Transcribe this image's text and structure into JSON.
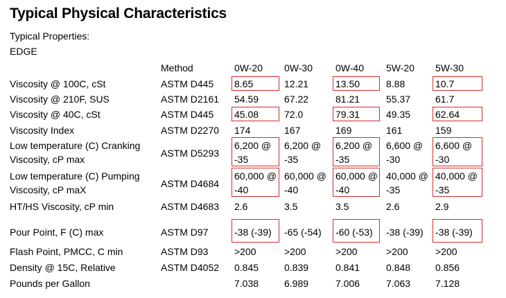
{
  "title": "Typical Physical Characteristics",
  "subtitle1": "Typical Properties:",
  "subtitle2": "EDGE",
  "table": {
    "method_header": "Method",
    "grades": [
      "0W-20",
      "0W-30",
      "0W-40",
      "5W-20",
      "5W-30"
    ],
    "rows": [
      {
        "prop": "Viscosity @ 100C, cSt",
        "method": "ASTM D445",
        "values": [
          "8.65",
          "12.21",
          "13.50",
          "8.88",
          "10.7"
        ],
        "highlight": [
          true,
          false,
          true,
          false,
          true
        ]
      },
      {
        "prop": "Viscosity @ 210F, SUS",
        "method": "ASTM D2161",
        "values": [
          "54.59",
          "67.22",
          "81.21",
          "55.37",
          "61.7"
        ],
        "highlight": [
          false,
          false,
          false,
          false,
          false
        ]
      },
      {
        "prop": "Viscosity @ 40C, cSt",
        "method": "ASTM D445",
        "values": [
          "45.08",
          "72.0",
          "79.31",
          "49.35",
          "62.64"
        ],
        "highlight": [
          true,
          false,
          true,
          false,
          true
        ]
      },
      {
        "prop": "Viscosity Index",
        "method": "ASTM D2270",
        "values": [
          "174",
          "167",
          "169",
          "161",
          "159"
        ],
        "highlight": [
          false,
          false,
          false,
          false,
          false
        ]
      },
      {
        "prop": "Low temperature (C) Cranking Viscosity, cP max",
        "method": "ASTM D5293",
        "values": [
          "6,200 @ -35",
          "6,200 @ -35",
          "6,200 @ -35",
          "6,600 @ -30",
          "6,600 @ -30"
        ],
        "highlight": [
          true,
          false,
          true,
          false,
          true
        ]
      },
      {
        "prop": "Low temperature (C) Pumping Viscosity, cP maX",
        "method": "ASTM D4684",
        "values": [
          "60,000 @ -40",
          "60,000 @ -40",
          "60,000 @ -40",
          "40,000 @ -35",
          "40,000 @ -35"
        ],
        "highlight": [
          true,
          false,
          true,
          false,
          true
        ]
      },
      {
        "prop": "HT/HS Viscosity, cP min",
        "method": "ASTM D4683",
        "values": [
          "2.6",
          "3.5",
          "3.5",
          "2.6",
          "2.9"
        ],
        "highlight": [
          false,
          false,
          false,
          false,
          false
        ]
      },
      {
        "prop": "Pour Point, F (C) max",
        "method": "ASTM D97",
        "values": [
          "-38 (-39)",
          "-65 (-54)",
          "-60 (-53)",
          "-38 (-39)",
          "-38 (-39)"
        ],
        "highlight": [
          true,
          false,
          true,
          false,
          true
        ]
      },
      {
        "prop": "Flash Point, PMCC, C min",
        "method": "ASTM D93",
        "values": [
          ">200",
          ">200",
          ">200",
          ">200",
          ">200"
        ],
        "highlight": [
          false,
          false,
          false,
          false,
          false
        ]
      },
      {
        "prop": "Density @ 15C, Relative",
        "method": "ASTM D4052",
        "values": [
          "0.845",
          "0.839",
          "0.841",
          "0.848",
          "0.856"
        ],
        "highlight": [
          false,
          false,
          false,
          false,
          false
        ]
      },
      {
        "prop": "Pounds per Gallon",
        "method": "",
        "values": [
          "7.038",
          "6.989",
          "7.006",
          "7.063",
          "7.128"
        ],
        "highlight": [
          false,
          false,
          false,
          false,
          false
        ]
      }
    ]
  },
  "colors": {
    "highlight": "#d42a2a",
    "text": "#000000"
  }
}
